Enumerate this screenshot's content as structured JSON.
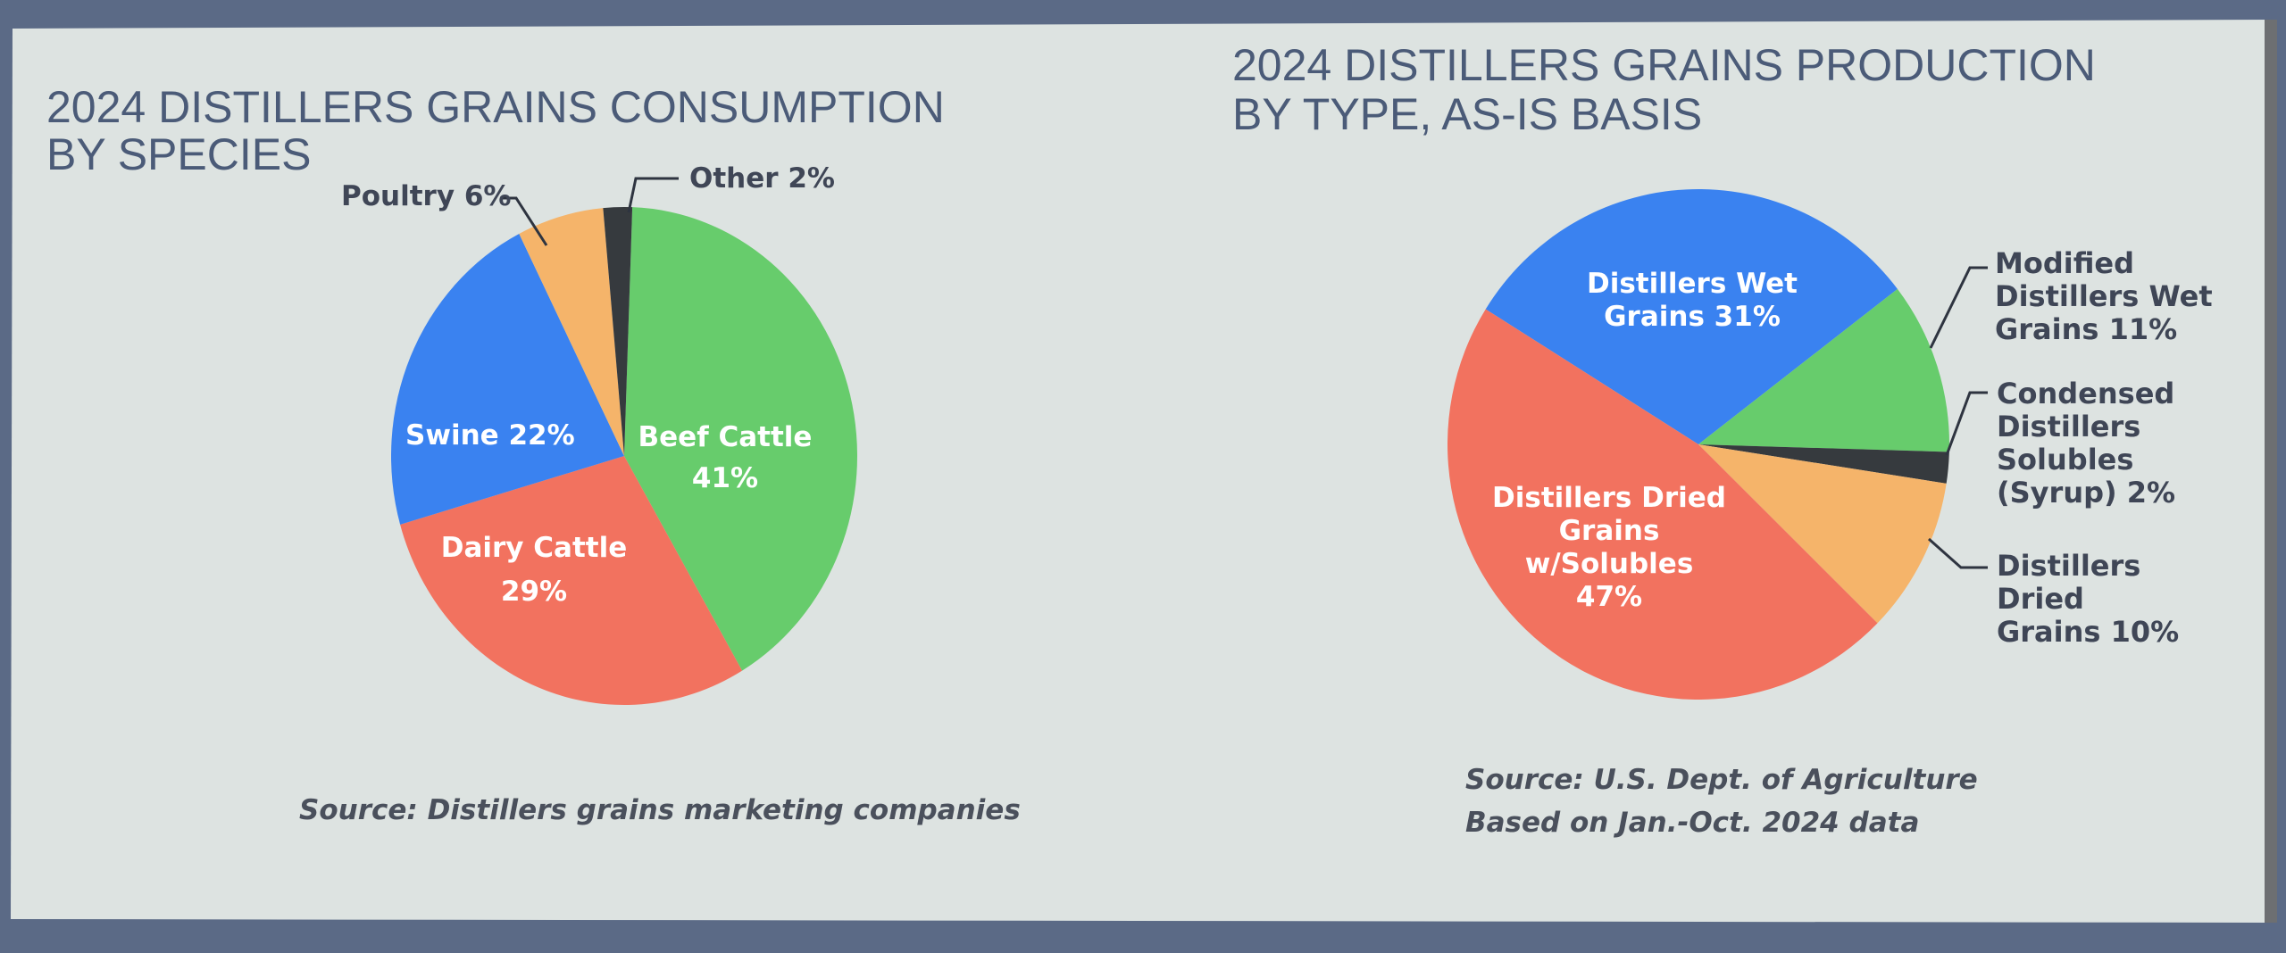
{
  "colors": {
    "green": "#67cc6c",
    "red": "#f2725f",
    "blue": "#3a82f0",
    "orange": "#f5b46a",
    "dark": "#363a3e",
    "background": "#dde3e1"
  },
  "chart_data": [
    {
      "type": "pie",
      "title": [
        "2024 DISTILLERS GRAINS CONSUMPTION",
        "BY SPECIES"
      ],
      "slices": [
        {
          "label": "Beef Cattle",
          "value": 41,
          "pct_label": "41%",
          "color": "#67cc6c"
        },
        {
          "label": "Dairy Cattle",
          "value": 29,
          "pct_label": "29%",
          "color": "#f2725f"
        },
        {
          "label": "Swine 22%",
          "value": 22,
          "color": "#3a82f0"
        },
        {
          "label": "Poultry 6%",
          "value": 6,
          "color": "#f5b46a"
        },
        {
          "label": "Other 2%",
          "value": 2,
          "color": "#363a3e"
        }
      ],
      "source": "Source: Distillers grains marketing companies"
    },
    {
      "type": "pie",
      "title": [
        "2024 DISTILLERS GRAINS PRODUCTION",
        "BY TYPE, AS-IS BASIS"
      ],
      "slices": [
        {
          "label_lines": [
            "Distillers Wet",
            "Grains 31%"
          ],
          "value": 31,
          "color": "#3a82f0"
        },
        {
          "label_lines": [
            "Modified",
            "Distillers Wet",
            "Grains  11%"
          ],
          "value": 11,
          "color": "#67cc6c"
        },
        {
          "label_lines": [
            "Condensed",
            "Distillers",
            "Solubles",
            "(Syrup)    2%"
          ],
          "value": 2,
          "color": "#363a3e"
        },
        {
          "label_lines": [
            "Distillers",
            "Dried",
            "Grains   10%"
          ],
          "value": 10,
          "color": "#f5b46a"
        },
        {
          "label_lines": [
            "Distillers Dried",
            "Grains",
            "w/Solubles",
            "47%"
          ],
          "value": 47,
          "color": "#f2725f"
        }
      ],
      "source": [
        "Source: U.S. Dept. of Agriculture",
        "Based on Jan.-Oct. 2024 data"
      ]
    }
  ]
}
